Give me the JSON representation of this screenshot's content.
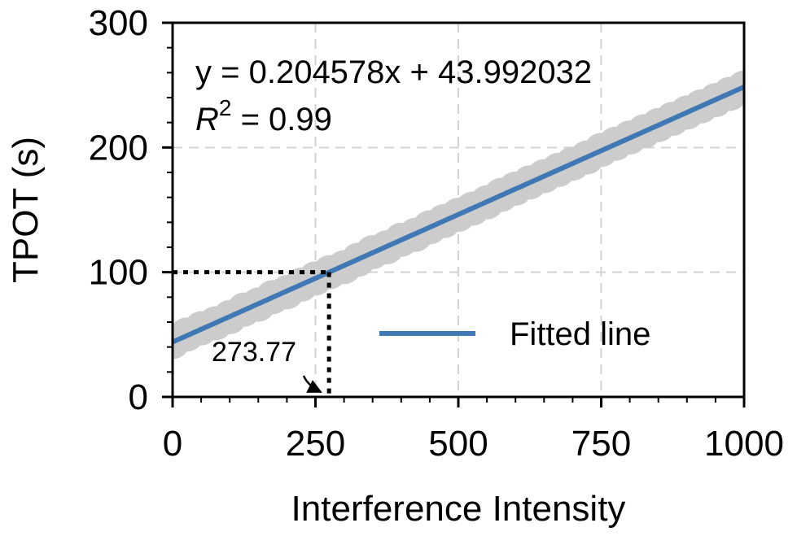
{
  "chart_data": {
    "type": "scatter",
    "xlabel": "Interference Intensity",
    "ylabel": "TPOT (s)",
    "xlim": [
      0,
      1000
    ],
    "ylim": [
      0,
      300
    ],
    "x_ticks": [
      "0",
      "250",
      "500",
      "750",
      "1000"
    ],
    "y_ticks": [
      "0",
      "100",
      "200",
      "300"
    ],
    "grid": true,
    "legend": {
      "position": "center-right",
      "entries": [
        "Fitted line"
      ]
    },
    "fit": {
      "slope": 0.204578,
      "intercept": 43.992032
    },
    "equation_text": "y = 0.204578x + 43.992032",
    "r2_label": "R",
    "r2_sup": "2",
    "r2_value": " = 0.99",
    "reference": {
      "y": 100,
      "x": 273.77,
      "x_label": "273.77"
    },
    "series": [
      {
        "type": "scatter",
        "x": [
          0,
          25,
          50,
          75,
          100,
          125,
          150,
          175,
          200,
          225,
          250,
          275,
          300,
          325,
          350,
          375,
          400,
          425,
          450,
          475,
          500,
          525,
          550,
          575,
          600,
          625,
          650,
          675,
          700,
          725,
          750,
          775,
          800,
          825,
          850,
          875,
          900,
          925,
          950,
          975,
          1000
        ],
        "y": [
          44,
          50,
          55,
          59,
          64,
          70,
          74,
          80,
          84,
          90,
          95,
          100,
          104,
          110,
          116,
          120,
          126,
          130,
          136,
          141,
          146,
          151,
          156,
          162,
          167,
          172,
          177,
          182,
          187,
          192,
          198,
          203,
          208,
          213,
          218,
          223,
          228,
          233,
          238,
          243,
          248
        ]
      },
      {
        "type": "line",
        "name": "Fitted line",
        "x": [
          0,
          1000
        ],
        "y": [
          43.99,
          248.57
        ]
      }
    ],
    "colors": {
      "points": "#cccccc",
      "fit": "#3f78b4",
      "grid": "#d3d3d3"
    }
  }
}
